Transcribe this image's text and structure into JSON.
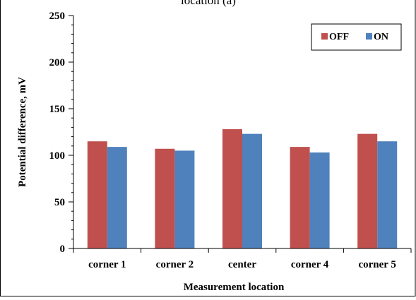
{
  "chart_data": {
    "type": "bar",
    "title": "location (a)",
    "xlabel": "Measurement location",
    "ylabel": "Potential difference, mV",
    "categories": [
      "corner 1",
      "corner 2",
      "center",
      "corner 4",
      "corner 5"
    ],
    "series": [
      {
        "name": "OFF",
        "color": "#c0504d",
        "values": [
          115,
          107,
          128,
          109,
          123
        ]
      },
      {
        "name": "ON",
        "color": "#4f81bd",
        "values": [
          109,
          105,
          123,
          103,
          115
        ]
      }
    ],
    "ylim": [
      0,
      250
    ],
    "yticks": [
      0,
      50,
      100,
      150,
      200,
      250
    ],
    "grid": false,
    "legend_position": "top-right"
  }
}
